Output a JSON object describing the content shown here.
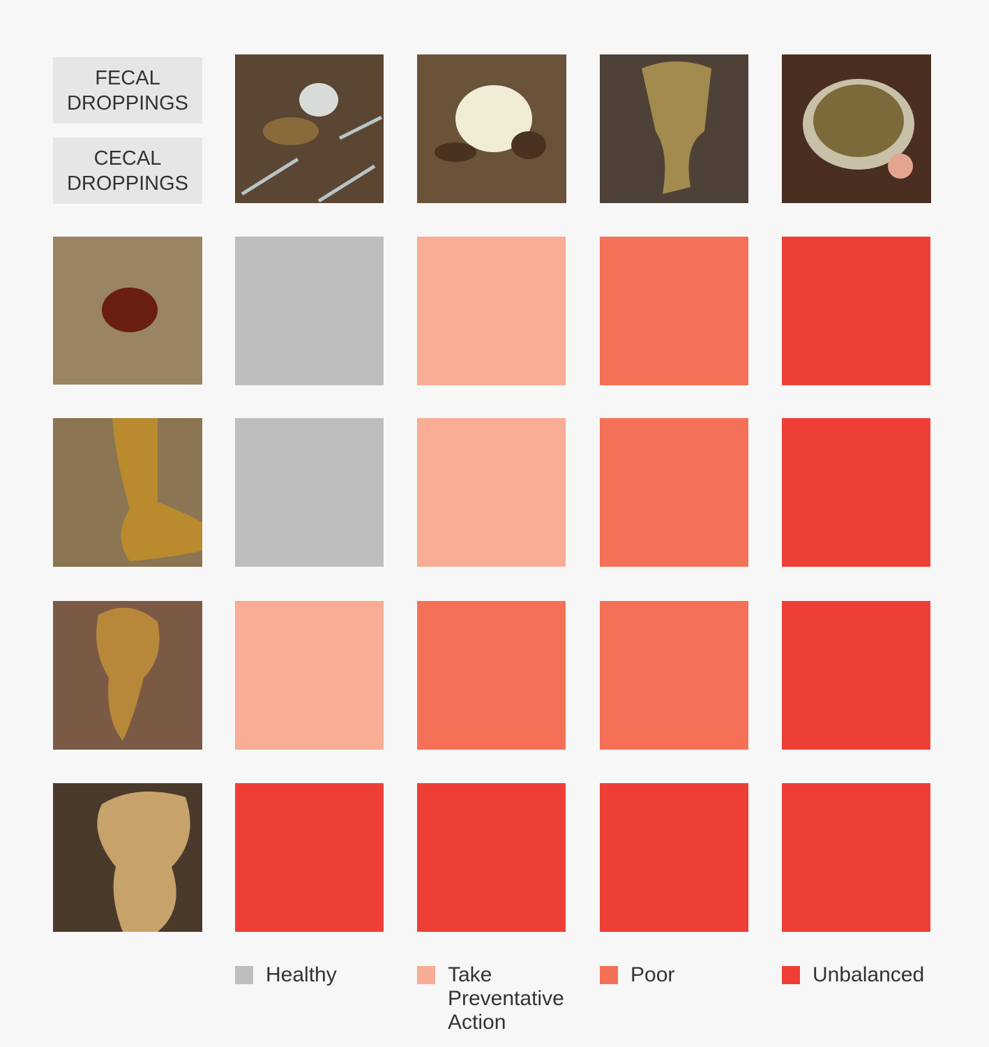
{
  "header": {
    "labels": [
      "FECAL DROPPINGS",
      "CECAL DROPPINGS"
    ]
  },
  "legend": [
    {
      "label": "Healthy",
      "color": "#c0bdbf"
    },
    {
      "label": "Take Preventative Action",
      "color": "#f8ad94"
    },
    {
      "label": "Poor",
      "color": "#f47157"
    },
    {
      "label": "Unbalanced",
      "color": "#ee3f37"
    }
  ],
  "grid": {
    "rows": [
      [
        "Healthy",
        "Take Preventative Action",
        "Poor",
        "Unbalanced"
      ],
      [
        "Healthy",
        "Take Preventative Action",
        "Poor",
        "Unbalanced"
      ],
      [
        "Take Preventative Action",
        "Poor",
        "Poor",
        "Unbalanced"
      ],
      [
        "Unbalanced",
        "Unbalanced",
        "Unbalanced",
        "Unbalanced"
      ]
    ]
  }
}
